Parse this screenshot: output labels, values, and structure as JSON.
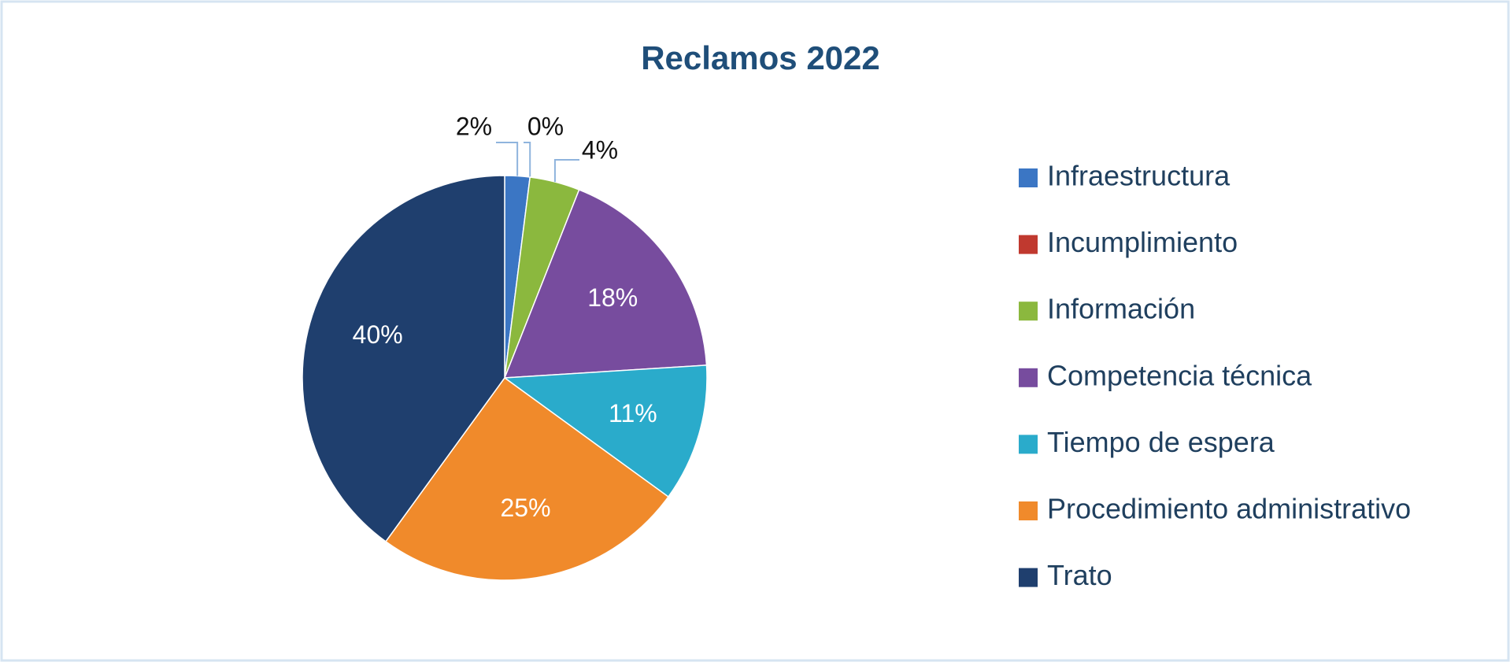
{
  "chart_data": {
    "type": "pie",
    "title": "Reclamos 2022",
    "categories": [
      "Infraestructura",
      "Incumplimiento",
      "Información",
      "Competencia técnica",
      "Tiempo de espera",
      "Procedimiento administrativo",
      "Trato"
    ],
    "values": [
      2,
      0,
      4,
      18,
      11,
      25,
      40
    ],
    "value_labels": [
      "2%",
      "0%",
      "4%",
      "18%",
      "11%",
      "25%",
      "40%"
    ],
    "colors": [
      "#3b76c4",
      "#c0392f",
      "#8bb83e",
      "#774c9e",
      "#2aabcb",
      "#f08a2b",
      "#1f3f6e"
    ],
    "legend": "right"
  }
}
